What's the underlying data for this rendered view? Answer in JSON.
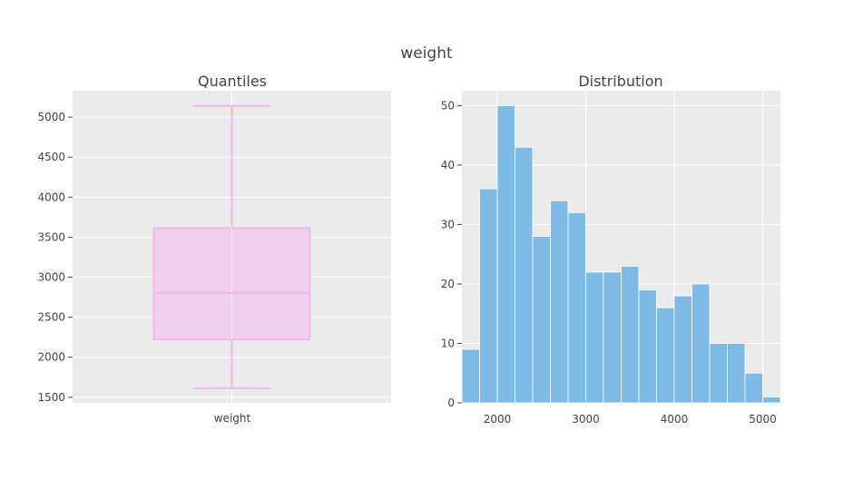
{
  "figure": {
    "title": "weight"
  },
  "colors": {
    "plot_bg": "#ebebeb",
    "grid": "#ffffff",
    "box_stroke": "#f0b8ec",
    "box_fill": "#efd0ec",
    "bar_fill": "#7dbbe6",
    "bar_stroke": "#ffffff",
    "text": "#444444"
  },
  "chart_data": [
    {
      "type": "box",
      "title": "Quantiles",
      "categories": [
        "weight"
      ],
      "series": [
        {
          "name": "weight",
          "min": 1613,
          "q1": 2223,
          "median": 2804,
          "q3": 3615,
          "max": 5140
        }
      ],
      "ylim": [
        1430,
        5330
      ],
      "yticks": [
        1500,
        2000,
        2500,
        3000,
        3500,
        4000,
        4500,
        5000
      ],
      "grid": true
    },
    {
      "type": "bar",
      "title": "Distribution",
      "bin_edges": [
        1600,
        1800,
        2000,
        2200,
        2400,
        2600,
        2800,
        3000,
        3200,
        3400,
        3600,
        3800,
        4000,
        4200,
        4400,
        4600,
        4800,
        5000,
        5200
      ],
      "values": [
        9,
        36,
        50,
        43,
        28,
        34,
        32,
        22,
        22,
        23,
        19,
        16,
        18,
        20,
        10,
        10,
        5,
        1
      ],
      "xlim": [
        1600,
        5200
      ],
      "ylim": [
        0,
        52.5
      ],
      "xticks": [
        2000,
        3000,
        4000,
        5000
      ],
      "yticks": [
        0,
        10,
        20,
        30,
        40,
        50
      ],
      "grid": true
    }
  ]
}
